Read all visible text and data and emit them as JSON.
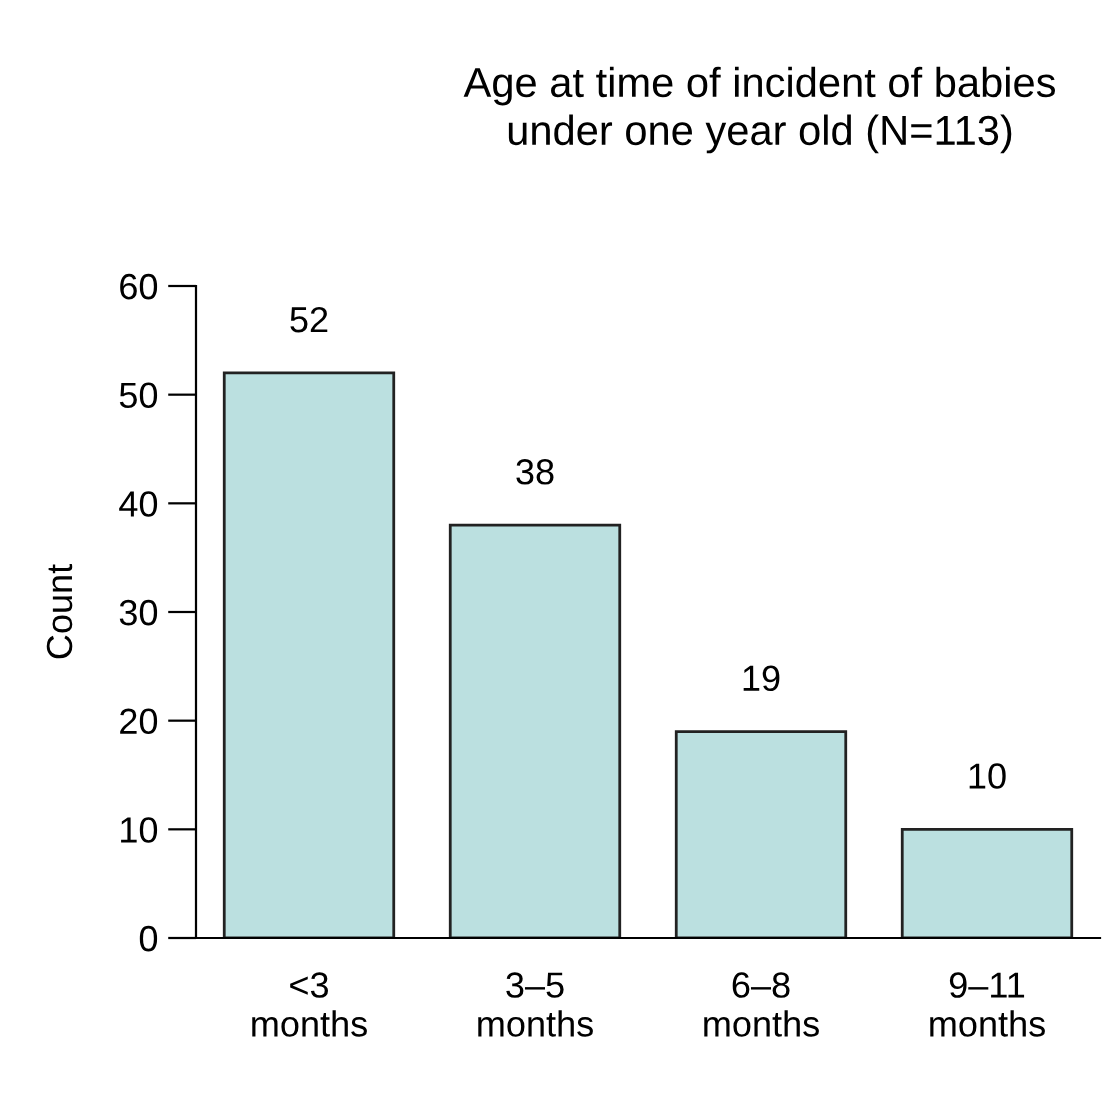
{
  "chart_data": {
    "type": "bar",
    "title": "Age at time of incident of babies\nunder one year old (N=113)",
    "ylabel": "Count",
    "categories": [
      "<3\nmonths",
      "3–5\nmonths",
      "6–8\nmonths",
      "9–11\nmonths"
    ],
    "values": [
      52,
      38,
      19,
      10
    ],
    "color": "#bbe0e0",
    "ylim": [
      0,
      60
    ],
    "yticks": [
      0,
      10,
      20,
      30,
      40,
      50,
      60
    ],
    "data_labels": true,
    "grid": false,
    "legend": false
  }
}
